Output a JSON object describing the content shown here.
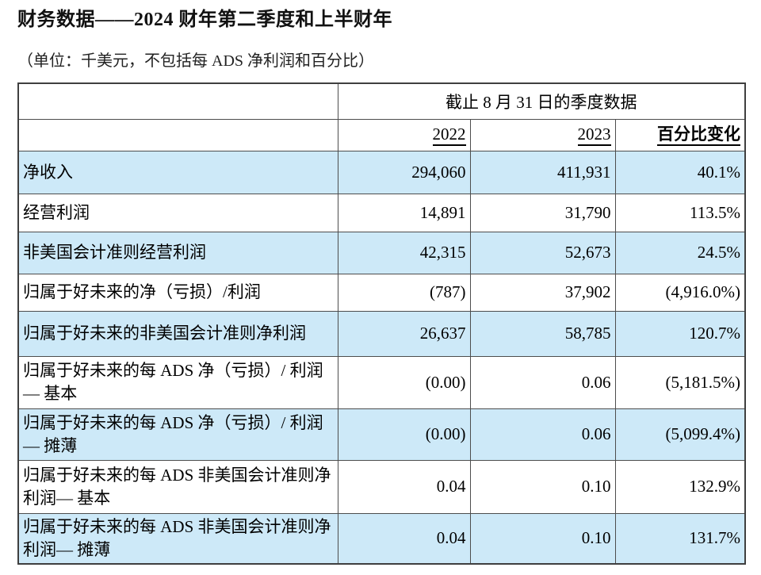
{
  "title": "财务数据——2024 财年第二季度和上半财年",
  "subtitle": "（单位：千美元，不包括每 ADS 净利润和百分比）",
  "table": {
    "period_header": "截止 8 月 31 日的季度数据",
    "columns": {
      "year_2022": "2022",
      "year_2023": "2023",
      "pct_change": "百分比变化"
    },
    "rows": [
      {
        "label": "净收入",
        "v2022": "294,060",
        "v2023": "411,931",
        "pct": "40.1%"
      },
      {
        "label": "经营利润",
        "v2022": "14,891",
        "v2023": "31,790",
        "pct": "113.5%"
      },
      {
        "label": "非美国会计准则经营利润",
        "v2022": "42,315",
        "v2023": "52,673",
        "pct": "24.5%"
      },
      {
        "label": "归属于好未来的净（亏损）/利润",
        "v2022": "(787)",
        "v2023": "37,902",
        "pct": "(4,916.0%)"
      },
      {
        "label": "归属于好未来的非美国会计准则净利润",
        "v2022": "26,637",
        "v2023": "58,785",
        "pct": "120.7%"
      },
      {
        "label": "归属于好未来的每 ADS 净（亏损）/ 利润— 基本",
        "v2022": "(0.00)",
        "v2023": "0.06",
        "pct": "(5,181.5%)"
      },
      {
        "label": "归属于好未来的每 ADS 净（亏损）/ 利润— 摊薄",
        "v2022": "(0.00)",
        "v2023": "0.06",
        "pct": "(5,099.4%)"
      },
      {
        "label": "归属于好未来的每 ADS 非美国会计准则净利润— 基本",
        "v2022": "0.04",
        "v2023": "0.10",
        "pct": "132.9%"
      },
      {
        "label": "归属于好未来的每 ADS 非美国会计准则净利润— 摊薄",
        "v2022": "0.04",
        "v2023": "0.10",
        "pct": "131.7%"
      }
    ]
  },
  "colors": {
    "row_highlight": "#cde9f8",
    "table_border": "#4d4d4d"
  }
}
